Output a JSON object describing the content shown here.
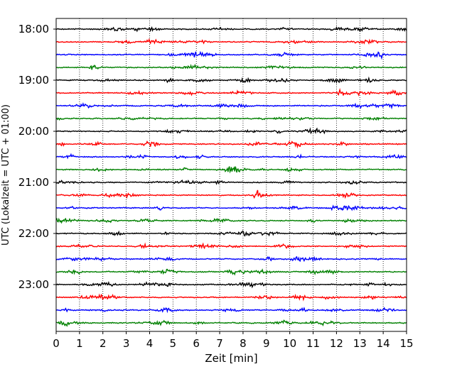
{
  "chart_data": {
    "type": "line",
    "title": "",
    "xlabel": "Zeit  [min]",
    "ylabel": "UTC (Lokalzeit = UTC + 01:00)",
    "xlim": [
      0,
      15
    ],
    "x_ticks": [
      0,
      1,
      2,
      3,
      4,
      5,
      6,
      7,
      8,
      9,
      10,
      11,
      12,
      13,
      14,
      15
    ],
    "x_tick_labels": [
      "0",
      "1",
      "2",
      "3",
      "4",
      "5",
      "6",
      "7",
      "8",
      "9",
      "10",
      "11",
      "12",
      "13",
      "14",
      "15"
    ],
    "y_tick_labels": [
      "18:00",
      "19:00",
      "20:00",
      "21:00",
      "22:00",
      "23:00"
    ],
    "y_axis_note": "each trace = 15-minute segment of seismic signal, 4 traces per hour from 18:00 to 23:45 UTC",
    "grid": "vertical dotted lines at each minute",
    "trace_colors": [
      "#000000",
      "#ff0000",
      "#0000ff",
      "#008000"
    ],
    "traces": [
      {
        "start": "18:00",
        "color": "#000000"
      },
      {
        "start": "18:15",
        "color": "#ff0000"
      },
      {
        "start": "18:30",
        "color": "#0000ff"
      },
      {
        "start": "18:45",
        "color": "#008000"
      },
      {
        "start": "19:00",
        "color": "#000000"
      },
      {
        "start": "19:15",
        "color": "#ff0000"
      },
      {
        "start": "19:30",
        "color": "#0000ff"
      },
      {
        "start": "19:45",
        "color": "#008000"
      },
      {
        "start": "20:00",
        "color": "#000000"
      },
      {
        "start": "20:15",
        "color": "#ff0000"
      },
      {
        "start": "20:30",
        "color": "#0000ff"
      },
      {
        "start": "20:45",
        "color": "#008000"
      },
      {
        "start": "21:00",
        "color": "#000000"
      },
      {
        "start": "21:15",
        "color": "#ff0000"
      },
      {
        "start": "21:30",
        "color": "#0000ff"
      },
      {
        "start": "21:45",
        "color": "#008000"
      },
      {
        "start": "22:00",
        "color": "#000000"
      },
      {
        "start": "22:15",
        "color": "#ff0000"
      },
      {
        "start": "22:30",
        "color": "#0000ff"
      },
      {
        "start": "22:45",
        "color": "#008000"
      },
      {
        "start": "23:00",
        "color": "#000000"
      },
      {
        "start": "23:15",
        "color": "#ff0000"
      },
      {
        "start": "23:30",
        "color": "#0000ff"
      },
      {
        "start": "23:45",
        "color": "#008000"
      }
    ]
  }
}
